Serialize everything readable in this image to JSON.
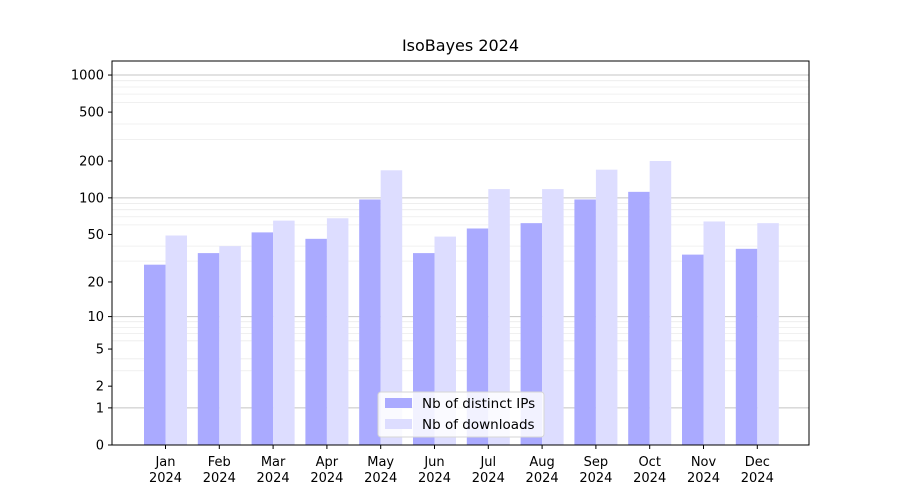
{
  "chart_data": {
    "type": "bar",
    "title": "IsoBayes 2024",
    "xlabel": "",
    "ylabel": "",
    "yscale": "symlog",
    "yticks": [
      0,
      1,
      2,
      5,
      10,
      20,
      50,
      100,
      200,
      500,
      1000
    ],
    "ytick_labels": [
      "0",
      "1",
      "2",
      "5",
      "10",
      "20",
      "50",
      "100",
      "200",
      "500",
      "1000"
    ],
    "ylim": [
      0,
      1300
    ],
    "grid": true,
    "legend_position": "bottom-center",
    "categories": [
      {
        "month": "Jan",
        "year": "2024"
      },
      {
        "month": "Feb",
        "year": "2024"
      },
      {
        "month": "Mar",
        "year": "2024"
      },
      {
        "month": "Apr",
        "year": "2024"
      },
      {
        "month": "May",
        "year": "2024"
      },
      {
        "month": "Jun",
        "year": "2024"
      },
      {
        "month": "Jul",
        "year": "2024"
      },
      {
        "month": "Aug",
        "year": "2024"
      },
      {
        "month": "Sep",
        "year": "2024"
      },
      {
        "month": "Oct",
        "year": "2024"
      },
      {
        "month": "Nov",
        "year": "2024"
      },
      {
        "month": "Dec",
        "year": "2024"
      }
    ],
    "series": [
      {
        "name": "Nb of distinct IPs",
        "color": "#aaaaff",
        "values": [
          28,
          35,
          52,
          46,
          97,
          35,
          56,
          62,
          97,
          112,
          34,
          38
        ]
      },
      {
        "name": "Nb of downloads",
        "color": "#ddddff",
        "values": [
          49,
          40,
          65,
          68,
          168,
          48,
          118,
          118,
          170,
          200,
          64,
          62
        ]
      }
    ]
  }
}
